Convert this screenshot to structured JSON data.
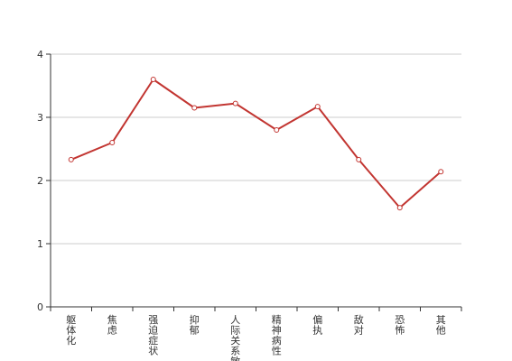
{
  "chart_data": {
    "type": "line",
    "title": "",
    "xlabel": "",
    "ylabel": "",
    "categories": [
      "躯体化",
      "焦虑",
      "强迫症状",
      "抑郁",
      "人际关系敏感",
      "精神病性",
      "偏执",
      "敌对",
      "恐怖",
      "其他"
    ],
    "series": [
      {
        "name": "",
        "values": [
          2.33,
          2.6,
          3.6,
          3.15,
          3.22,
          2.8,
          3.17,
          2.33,
          1.57,
          2.14
        ],
        "color": "#c23531"
      }
    ],
    "ylim": [
      0,
      4
    ],
    "yticks": [
      0,
      1,
      2,
      3,
      4
    ],
    "grid": true,
    "legend": "none"
  }
}
